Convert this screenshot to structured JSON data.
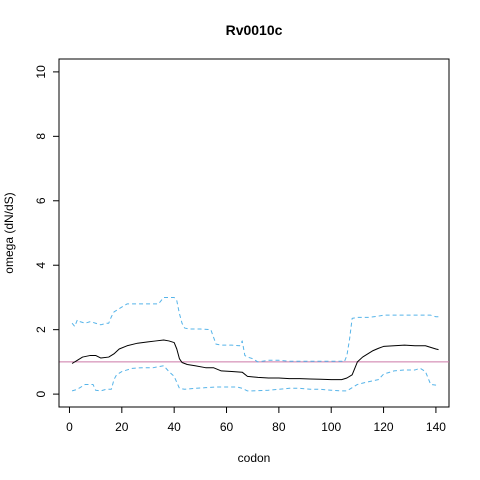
{
  "chart_data": {
    "type": "line",
    "title": "Rv0010c",
    "xlabel": "codon",
    "ylabel": "omega (dN/dS)",
    "xlim": [
      -4,
      145
    ],
    "ylim": [
      -0.4,
      10.4
    ],
    "xticks": [
      0,
      20,
      40,
      60,
      80,
      100,
      120,
      140
    ],
    "yticks": [
      0,
      2,
      4,
      6,
      8,
      10
    ],
    "reference_line": {
      "y": 1,
      "color": "#cc79a7"
    },
    "series": [
      {
        "style": "solid",
        "color": "#000000",
        "x": [
          1,
          3,
          5,
          8,
          10,
          12,
          15,
          17,
          19,
          22,
          26,
          30,
          33,
          36,
          38,
          40,
          41,
          42,
          43,
          45,
          48,
          52,
          55,
          58,
          62,
          66,
          68,
          72,
          76,
          80,
          84,
          88,
          92,
          96,
          100,
          104,
          106,
          108,
          110,
          112,
          114,
          116,
          118,
          120,
          124,
          128,
          132,
          136,
          138,
          140,
          141
        ],
        "y": [
          0.95,
          1.05,
          1.15,
          1.2,
          1.2,
          1.12,
          1.15,
          1.25,
          1.4,
          1.5,
          1.58,
          1.62,
          1.65,
          1.68,
          1.65,
          1.6,
          1.4,
          1.1,
          0.98,
          0.92,
          0.88,
          0.82,
          0.82,
          0.72,
          0.7,
          0.68,
          0.55,
          0.52,
          0.5,
          0.5,
          0.48,
          0.48,
          0.47,
          0.46,
          0.45,
          0.45,
          0.5,
          0.6,
          1.0,
          1.15,
          1.25,
          1.35,
          1.42,
          1.48,
          1.5,
          1.52,
          1.5,
          1.5,
          1.45,
          1.4,
          1.38
        ]
      },
      {
        "style": "dashed",
        "color": "#56b4e9",
        "x": [
          1,
          2,
          3,
          4,
          6,
          8,
          10,
          12,
          14,
          15,
          16,
          17,
          18,
          20,
          22,
          24,
          26,
          30,
          34,
          36,
          40,
          41,
          42,
          43,
          44,
          46,
          50,
          54,
          56,
          58,
          62,
          65,
          66,
          67,
          68,
          70,
          72,
          76,
          80,
          84,
          88,
          92,
          96,
          100,
          104,
          105,
          106,
          107,
          108,
          110,
          114,
          118,
          120,
          124,
          128,
          132,
          136,
          138,
          140,
          141
        ],
        "y": [
          2.2,
          2.1,
          2.3,
          2.25,
          2.2,
          2.25,
          2.2,
          2.15,
          2.2,
          2.2,
          2.4,
          2.55,
          2.6,
          2.7,
          2.8,
          2.8,
          2.8,
          2.8,
          2.8,
          3.0,
          3.0,
          2.9,
          2.5,
          2.2,
          2.05,
          2.02,
          2.02,
          2.0,
          1.55,
          1.52,
          1.52,
          1.5,
          1.65,
          1.2,
          1.15,
          1.1,
          1.0,
          1.05,
          1.05,
          1.02,
          1.02,
          1.02,
          1.02,
          1.02,
          1.02,
          1.0,
          1.2,
          1.7,
          2.35,
          2.38,
          2.38,
          2.42,
          2.45,
          2.45,
          2.45,
          2.45,
          2.45,
          2.45,
          2.4,
          2.4
        ]
      },
      {
        "style": "dashed",
        "color": "#56b4e9",
        "x": [
          1,
          3,
          4,
          6,
          8,
          9,
          10,
          12,
          14,
          16,
          17,
          18,
          20,
          24,
          28,
          32,
          34,
          36,
          38,
          40,
          42,
          44,
          48,
          52,
          56,
          60,
          64,
          66,
          68,
          70,
          76,
          80,
          84,
          88,
          92,
          96,
          100,
          104,
          106,
          108,
          110,
          114,
          118,
          120,
          124,
          128,
          132,
          134,
          136,
          138,
          140,
          141
        ],
        "y": [
          0.1,
          0.15,
          0.2,
          0.3,
          0.3,
          0.3,
          0.12,
          0.1,
          0.15,
          0.15,
          0.45,
          0.6,
          0.7,
          0.8,
          0.82,
          0.82,
          0.85,
          0.88,
          0.7,
          0.55,
          0.18,
          0.15,
          0.18,
          0.2,
          0.22,
          0.22,
          0.22,
          0.18,
          0.1,
          0.1,
          0.12,
          0.15,
          0.18,
          0.18,
          0.15,
          0.15,
          0.12,
          0.1,
          0.1,
          0.2,
          0.3,
          0.38,
          0.45,
          0.62,
          0.72,
          0.75,
          0.75,
          0.8,
          0.7,
          0.3,
          0.28,
          0.28
        ]
      }
    ]
  }
}
